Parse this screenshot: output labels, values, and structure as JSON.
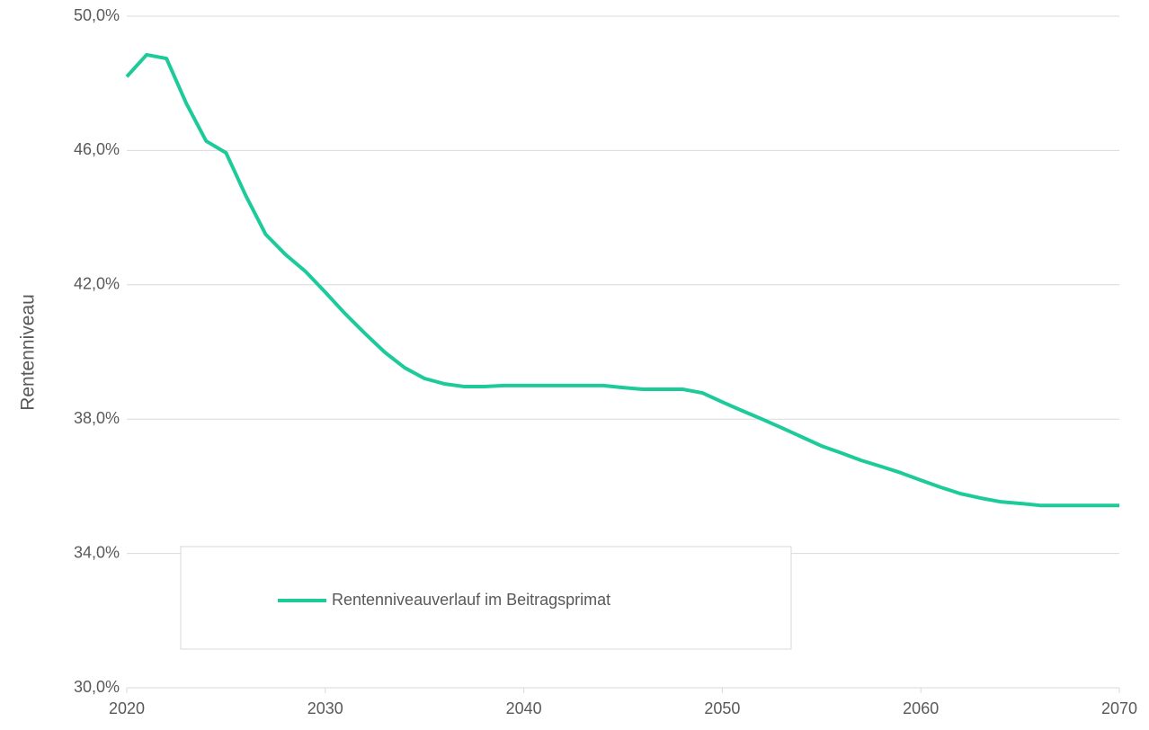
{
  "chart_data": {
    "type": "line",
    "y_label": "Rentenniveau",
    "x": [
      2020,
      2021,
      2022,
      2023,
      2024,
      2025,
      2026,
      2027,
      2028,
      2029,
      2030,
      2031,
      2032,
      2033,
      2034,
      2035,
      2036,
      2037,
      2038,
      2039,
      2040,
      2041,
      2042,
      2043,
      2044,
      2045,
      2046,
      2047,
      2048,
      2049,
      2050,
      2051,
      2052,
      2053,
      2054,
      2055,
      2056,
      2057,
      2058,
      2059,
      2060,
      2061,
      2062,
      2063,
      2064,
      2065,
      2066,
      2067,
      2068,
      2069,
      2070
    ],
    "series": [
      {
        "name": "Rentenniveauverlauf im Beitragsprimat",
        "color": "#1dcb9a",
        "values": [
          48.2,
          48.85,
          48.74,
          47.4,
          46.28,
          45.93,
          44.65,
          43.5,
          42.9,
          42.4,
          41.78,
          41.14,
          40.55,
          39.99,
          39.53,
          39.21,
          39.05,
          38.97,
          38.97,
          39.0,
          39.0,
          39.0,
          39.0,
          39.0,
          39.0,
          38.94,
          38.89,
          38.89,
          38.89,
          38.78,
          38.51,
          38.25,
          38.0,
          37.74,
          37.47,
          37.2,
          36.99,
          36.77,
          36.59,
          36.4,
          36.18,
          35.97,
          35.78,
          35.65,
          35.54,
          35.49,
          35.43,
          35.43,
          35.43,
          35.43,
          35.43
        ]
      }
    ],
    "xlim": [
      2020,
      2070
    ],
    "xticks": [
      2020,
      2030,
      2040,
      2050,
      2060,
      2070
    ],
    "ylim": [
      30,
      50
    ],
    "yticks": [
      {
        "value": 30,
        "label": "30,0%"
      },
      {
        "value": 34,
        "label": "34,0%"
      },
      {
        "value": 38,
        "label": "38,0%"
      },
      {
        "value": 42,
        "label": "42,0%"
      },
      {
        "value": 46,
        "label": "46,0%"
      },
      {
        "value": 50,
        "label": "50,0%"
      }
    ],
    "grid": true,
    "legend_position": "lower-left"
  }
}
